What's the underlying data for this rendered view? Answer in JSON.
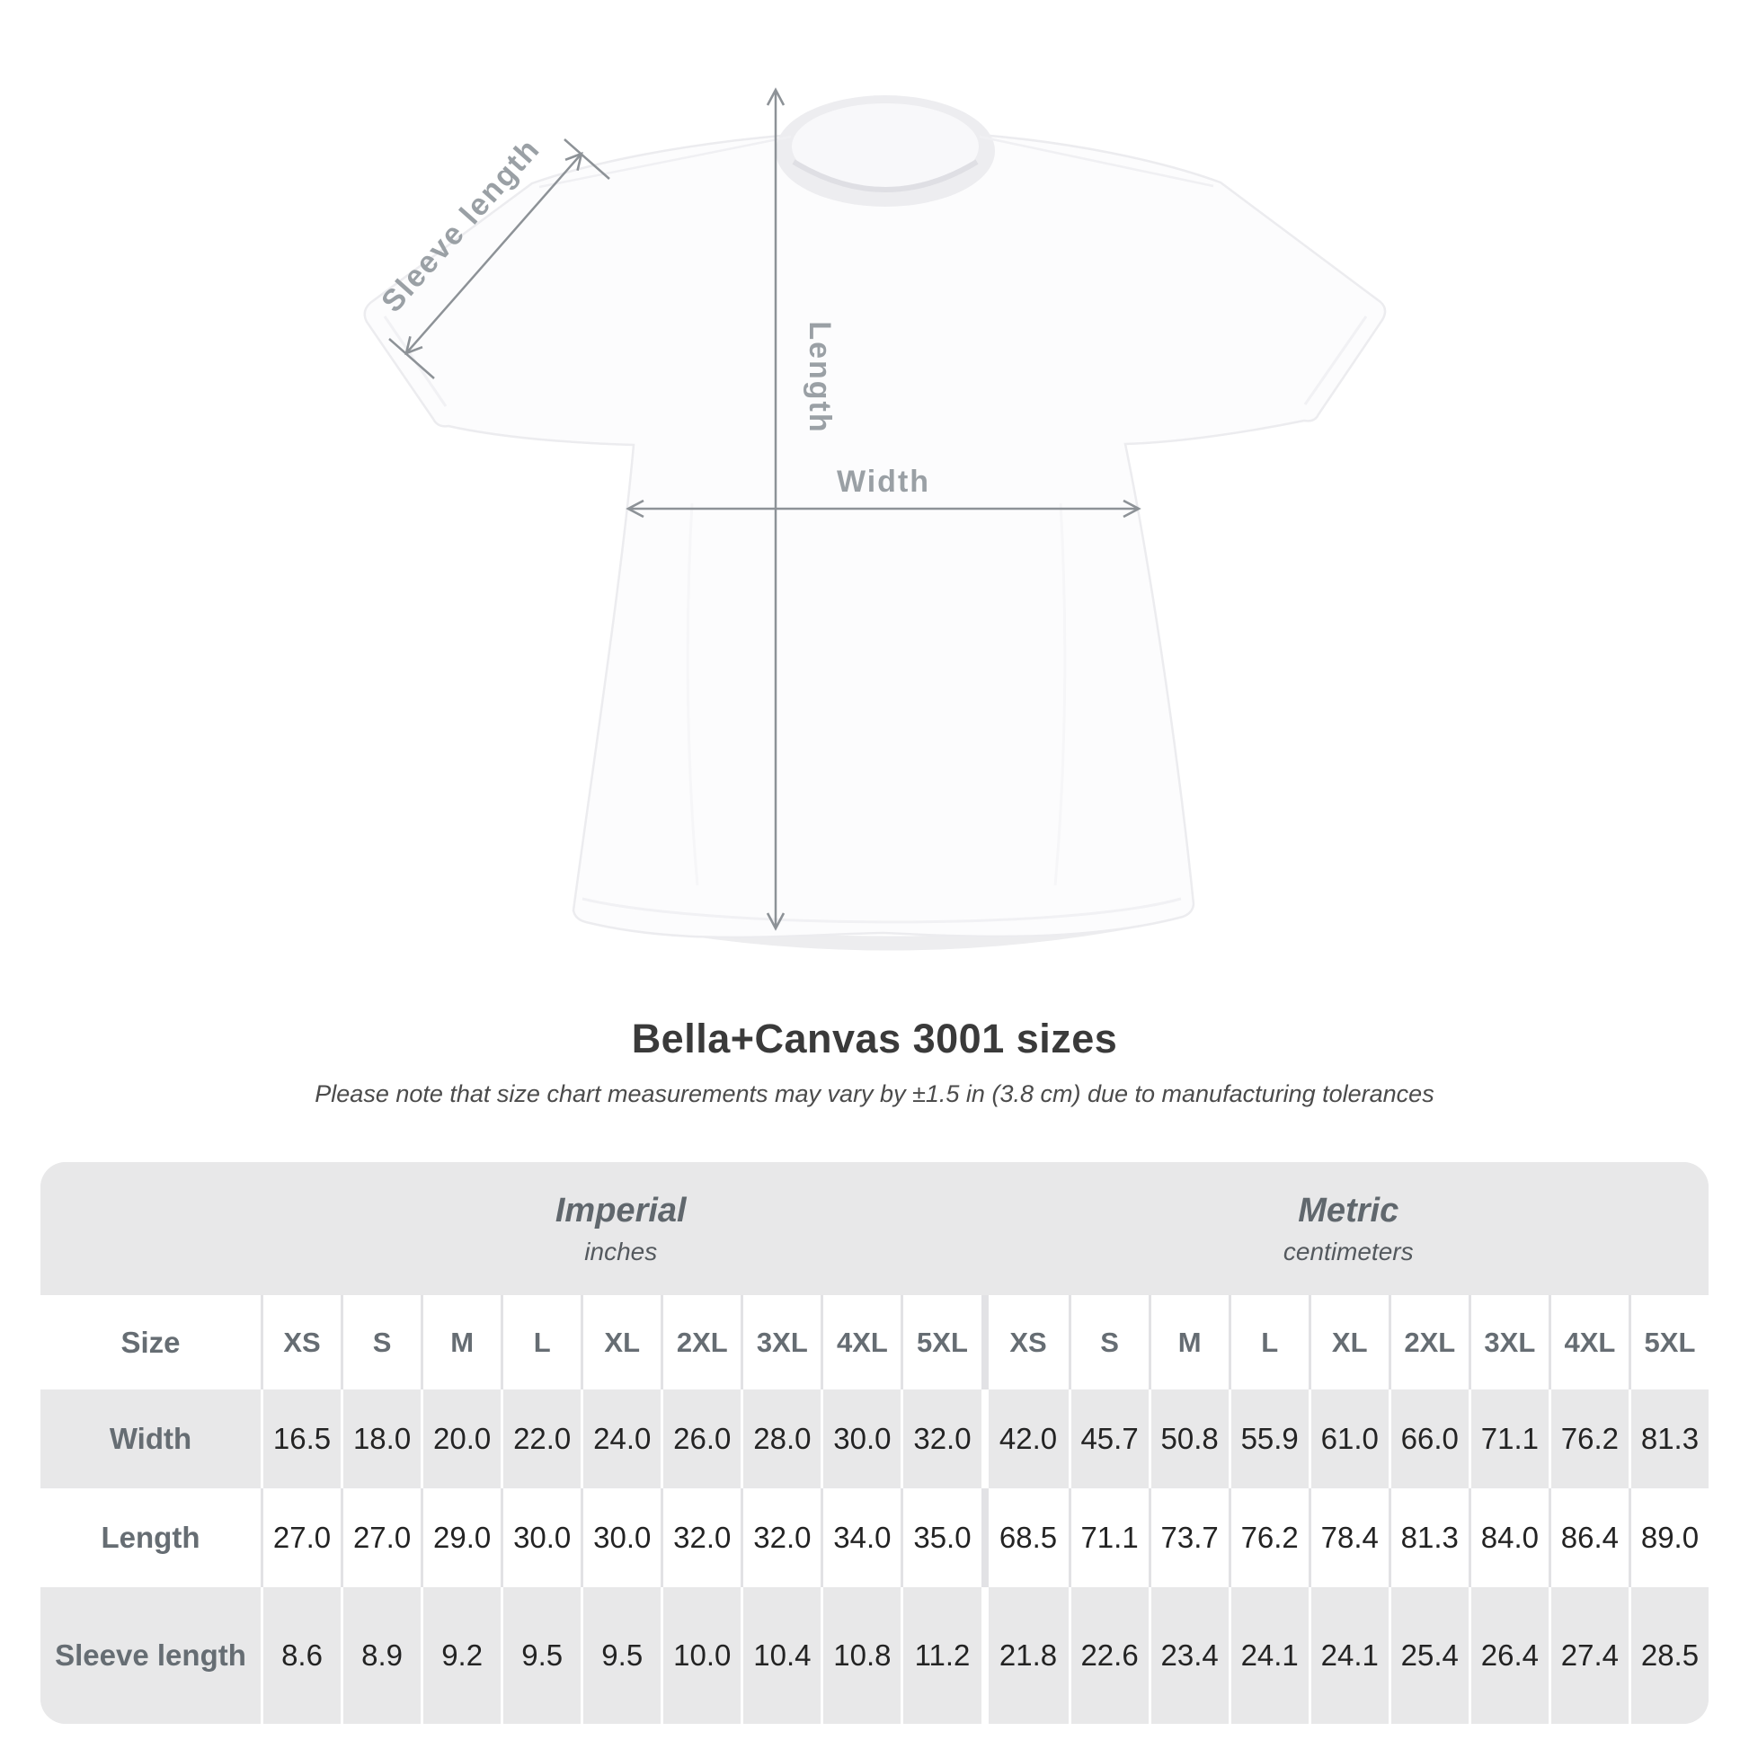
{
  "header": {
    "title": "Bella+Canvas 3001 sizes",
    "subtitle": "Please note that size chart measurements may vary by ±1.5 in (3.8 cm) due to manufacturing tolerances"
  },
  "diagram": {
    "annotations": {
      "sleeve_length_label": "Sleeve length",
      "length_label": "Length",
      "width_label": "Width"
    }
  },
  "size_table": {
    "corner_label": "Size",
    "unit_groups": [
      {
        "name": "Imperial",
        "unit": "inches"
      },
      {
        "name": "Metric",
        "unit": "centimeters"
      }
    ],
    "size_columns": [
      "XS",
      "S",
      "M",
      "L",
      "XL",
      "2XL",
      "3XL",
      "4XL",
      "5XL"
    ],
    "rows": [
      {
        "label": "Width",
        "imperial": [
          "16.5",
          "18.0",
          "20.0",
          "22.0",
          "24.0",
          "26.0",
          "28.0",
          "30.0",
          "32.0"
        ],
        "metric": [
          "42.0",
          "45.7",
          "50.8",
          "55.9",
          "61.0",
          "66.0",
          "71.1",
          "76.2",
          "81.3"
        ]
      },
      {
        "label": "Length",
        "imperial": [
          "27.0",
          "27.0",
          "29.0",
          "30.0",
          "30.0",
          "32.0",
          "32.0",
          "34.0",
          "35.0"
        ],
        "metric": [
          "68.5",
          "71.1",
          "73.7",
          "76.2",
          "78.4",
          "81.3",
          "84.0",
          "86.4",
          "89.0"
        ]
      },
      {
        "label": "Sleeve length",
        "imperial": [
          "8.6",
          "8.9",
          "9.2",
          "9.5",
          "9.5",
          "10.0",
          "10.4",
          "10.8",
          "11.2"
        ],
        "metric": [
          "21.8",
          "22.6",
          "23.4",
          "24.1",
          "24.1",
          "25.4",
          "26.4",
          "27.4",
          "28.5"
        ]
      }
    ]
  },
  "chart_data": {
    "type": "table",
    "title": "Bella+Canvas 3001 sizes",
    "note": "Please note that size chart measurements may vary by ±1.5 in (3.8 cm) due to manufacturing tolerances",
    "column_groups": [
      "Imperial (inches)",
      "Metric (centimeters)"
    ],
    "sizes": [
      "XS",
      "S",
      "M",
      "L",
      "XL",
      "2XL",
      "3XL",
      "4XL",
      "5XL"
    ],
    "rows": [
      {
        "measure": "Width",
        "imperial_in": [
          16.5,
          18.0,
          20.0,
          22.0,
          24.0,
          26.0,
          28.0,
          30.0,
          32.0
        ],
        "metric_cm": [
          42.0,
          45.7,
          50.8,
          55.9,
          61.0,
          66.0,
          71.1,
          76.2,
          81.3
        ]
      },
      {
        "measure": "Length",
        "imperial_in": [
          27.0,
          27.0,
          29.0,
          30.0,
          30.0,
          32.0,
          32.0,
          34.0,
          35.0
        ],
        "metric_cm": [
          68.5,
          71.1,
          73.7,
          76.2,
          78.4,
          81.3,
          84.0,
          86.4,
          89.0
        ]
      },
      {
        "measure": "Sleeve length",
        "imperial_in": [
          8.6,
          8.9,
          9.2,
          9.5,
          9.5,
          10.0,
          10.4,
          10.8,
          11.2
        ],
        "metric_cm": [
          21.8,
          22.6,
          23.4,
          24.1,
          24.1,
          25.4,
          26.4,
          27.4,
          28.5
        ]
      }
    ]
  },
  "colors": {
    "table_band_gray": "#e8e8e9",
    "row_white": "#ffffff",
    "label_gray": "#666d73",
    "number_dark": "#232323",
    "annotation_gray": "#9aa0a5",
    "dimension_line": "#8d9297",
    "title_dark": "#3a3a3a"
  }
}
